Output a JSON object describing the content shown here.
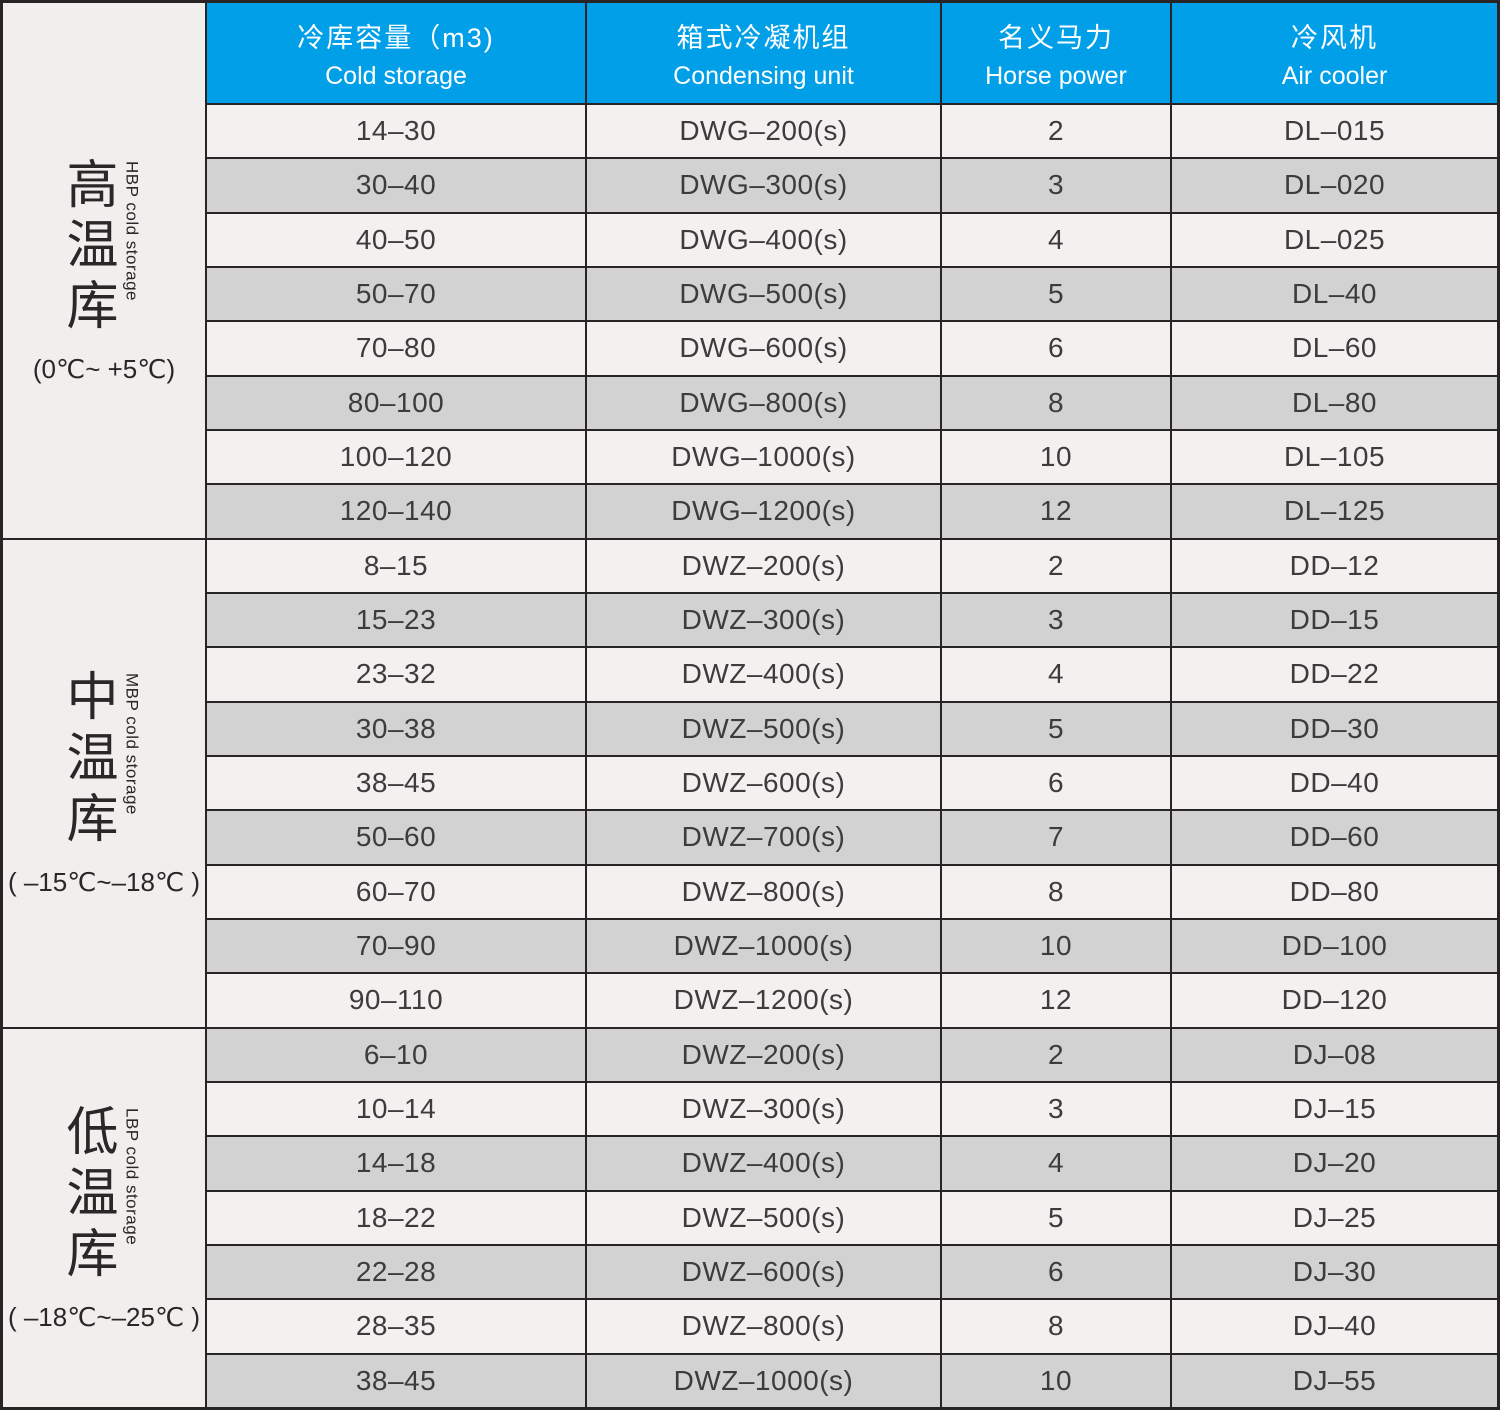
{
  "table": {
    "colors": {
      "header_bg": "#009fe8",
      "header_text": "#ffffff",
      "row_light": "#f2f1f0",
      "row_dark": "#d3d2d2",
      "label_bg": "#f0efee",
      "border": "#282324",
      "text": "#3d3b3c"
    },
    "header": {
      "columns": [
        {
          "zh": "冷库容量（m3)",
          "en": "Cold storage"
        },
        {
          "zh": "箱式冷凝机组",
          "en": "Condensing unit"
        },
        {
          "zh": "名义马力",
          "en": "Horse power"
        },
        {
          "zh": "冷风机",
          "en": "Air cooler"
        }
      ]
    },
    "sections": [
      {
        "zh": "高温库",
        "en": "HBP cold storage",
        "temp": "(0℃~ +5℃)",
        "rows": [
          [
            "14–30",
            "DWG–200(s)",
            "2",
            "DL–015"
          ],
          [
            "30–40",
            "DWG–300(s)",
            "3",
            "DL–020"
          ],
          [
            "40–50",
            "DWG–400(s)",
            "4",
            "DL–025"
          ],
          [
            "50–70",
            "DWG–500(s)",
            "5",
            "DL–40"
          ],
          [
            "70–80",
            "DWG–600(s)",
            "6",
            "DL–60"
          ],
          [
            "80–100",
            "DWG–800(s)",
            "8",
            "DL–80"
          ],
          [
            "100–120",
            "DWG–1000(s)",
            "10",
            "DL–105"
          ],
          [
            "120–140",
            "DWG–1200(s)",
            "12",
            "DL–125"
          ]
        ]
      },
      {
        "zh": "中温库",
        "en": "MBP cold storage",
        "temp": "( –15℃~–18℃ )",
        "rows": [
          [
            "8–15",
            "DWZ–200(s)",
            "2",
            "DD–12"
          ],
          [
            "15–23",
            "DWZ–300(s)",
            "3",
            "DD–15"
          ],
          [
            "23–32",
            "DWZ–400(s)",
            "4",
            "DD–22"
          ],
          [
            "30–38",
            "DWZ–500(s)",
            "5",
            "DD–30"
          ],
          [
            "38–45",
            "DWZ–600(s)",
            "6",
            "DD–40"
          ],
          [
            "50–60",
            "DWZ–700(s)",
            "7",
            "DD–60"
          ],
          [
            "60–70",
            "DWZ–800(s)",
            "8",
            "DD–80"
          ],
          [
            "70–90",
            "DWZ–1000(s)",
            "10",
            "DD–100"
          ],
          [
            "90–110",
            "DWZ–1200(s)",
            "12",
            "DD–120"
          ]
        ]
      },
      {
        "zh": "低温库",
        "en": "LBP cold storage",
        "temp": "( –18℃~–25℃ )",
        "rows": [
          [
            "6–10",
            "DWZ–200(s)",
            "2",
            "DJ–08"
          ],
          [
            "10–14",
            "DWZ–300(s)",
            "3",
            "DJ–15"
          ],
          [
            "14–18",
            "DWZ–400(s)",
            "4",
            "DJ–20"
          ],
          [
            "18–22",
            "DWZ–500(s)",
            "5",
            "DJ–25"
          ],
          [
            "22–28",
            "DWZ–600(s)",
            "6",
            "DJ–30"
          ],
          [
            "28–35",
            "DWZ–800(s)",
            "8",
            "DJ–40"
          ],
          [
            "38–45",
            "DWZ–1000(s)",
            "10",
            "DJ–55"
          ]
        ]
      }
    ]
  }
}
